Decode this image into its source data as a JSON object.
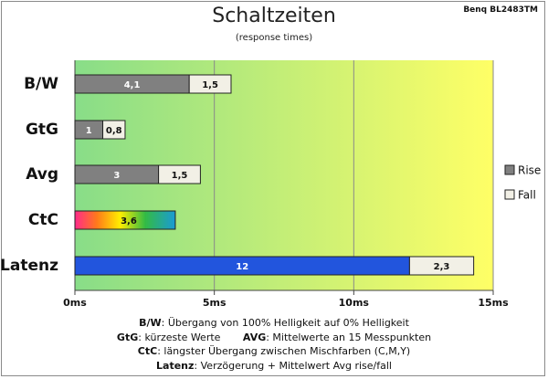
{
  "monitor": "Benq BL2483TM",
  "chart_data": {
    "type": "bar",
    "orientation": "horizontal",
    "stacked": true,
    "title": "Schaltzeiten",
    "subtitle": "(response times)",
    "categories": [
      "B/W",
      "GtG",
      "Avg",
      "CtC",
      "Latenz"
    ],
    "series": [
      {
        "name": "Rise",
        "values": [
          4.1,
          1,
          3,
          null,
          null
        ],
        "color": "#808080"
      },
      {
        "name": "Fall",
        "values": [
          1.5,
          0.8,
          1.5,
          null,
          null
        ],
        "color": "#f2f0e6"
      }
    ],
    "ctc": {
      "value": 3.6
    },
    "latenz": {
      "delay": 12,
      "avg": 2.3,
      "delay_color": "#2255dd"
    },
    "xticks": [
      "0ms",
      "5ms",
      "10ms",
      "15ms"
    ],
    "xlim": [
      0,
      15
    ],
    "grid": true,
    "legend_position": "right",
    "background_gradient": [
      "#88dd88",
      "#ffff66"
    ]
  },
  "notes": {
    "line1_key": "B/W",
    "line1_text": ":  Übergang von 100% Helligkeit auf 0% Helligkeit",
    "line2_key_a": "GtG",
    "line2_text_a": ": kürzeste Werte",
    "line2_key_b": "AVG",
    "line2_text_b": ": Mittelwerte  an 15 Messpunkten",
    "line3_key": "CtC",
    "line3_text": ": längster Übergang zwischen Mischfarben (C,M,Y)",
    "line4_key": "Latenz",
    "line4_text": ": Verzögerung  + Mittelwert Avg rise/fall"
  }
}
